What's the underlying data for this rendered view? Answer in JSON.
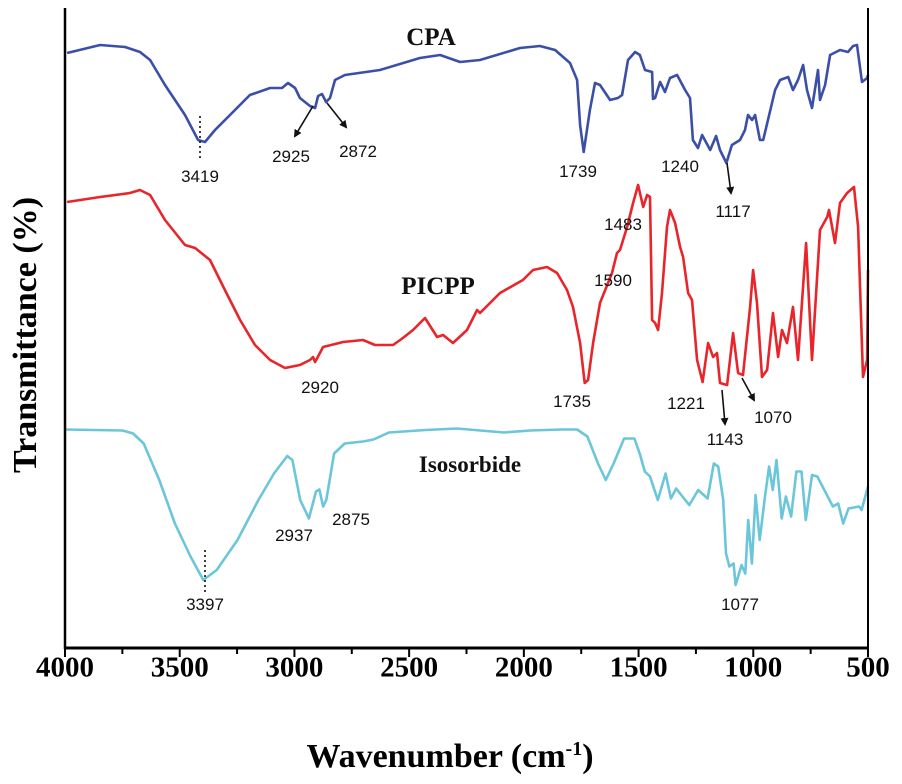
{
  "chart_data": {
    "type": "line",
    "xlabel": "Wavenumber (cm",
    "xlabel_sup": "-1",
    "xlabel_end": ")",
    "ylabel": "Transmittance (%)",
    "xlim": [
      4000,
      500
    ],
    "ylim": [
      0,
      126
    ],
    "xticks": [
      4000,
      3500,
      3000,
      2500,
      2000,
      1500,
      1000,
      500
    ],
    "xtick_labels": [
      "4000",
      "3500",
      "3000",
      "2500",
      "2000",
      "1500",
      "1000",
      "500"
    ],
    "grid": false,
    "series": [
      {
        "name": "CPA",
        "color": "#3b4fa6",
        "points": [
          [
            3991,
            119
          ],
          [
            3847,
            120.6
          ],
          [
            3738,
            120.2
          ],
          [
            3673,
            119.2
          ],
          [
            3629,
            117.6
          ],
          [
            3564,
            112.6
          ],
          [
            3477,
            106.6
          ],
          [
            3420,
            101.6
          ],
          [
            3390,
            101.2
          ],
          [
            3346,
            103.6
          ],
          [
            3281,
            106.6
          ],
          [
            3194,
            110.6
          ],
          [
            3106,
            112
          ],
          [
            3054,
            112
          ],
          [
            3028,
            113
          ],
          [
            2997,
            112
          ],
          [
            2976,
            110
          ],
          [
            2932,
            108.4
          ],
          [
            2910,
            108
          ],
          [
            2897,
            110.4
          ],
          [
            2880,
            110.8
          ],
          [
            2862,
            109.2
          ],
          [
            2845,
            110
          ],
          [
            2823,
            113.6
          ],
          [
            2780,
            114.6
          ],
          [
            2627,
            115.6
          ],
          [
            2453,
            118
          ],
          [
            2365,
            118.6
          ],
          [
            2278,
            117.2
          ],
          [
            2191,
            117.6
          ],
          [
            2017,
            120
          ],
          [
            1930,
            120.4
          ],
          [
            1864,
            119.6
          ],
          [
            1799,
            117
          ],
          [
            1768,
            113.6
          ],
          [
            1755,
            104.6
          ],
          [
            1739,
            99.2
          ],
          [
            1712,
            107.6
          ],
          [
            1690,
            113
          ],
          [
            1668,
            112.6
          ],
          [
            1624,
            109.6
          ],
          [
            1590,
            110
          ],
          [
            1572,
            110.6
          ],
          [
            1546,
            117.6
          ],
          [
            1515,
            119.2
          ],
          [
            1494,
            118.6
          ],
          [
            1472,
            115.6
          ],
          [
            1441,
            115.2
          ],
          [
            1437,
            109.8
          ],
          [
            1428,
            110
          ],
          [
            1406,
            113.2
          ],
          [
            1385,
            111.2
          ],
          [
            1363,
            114
          ],
          [
            1332,
            114.6
          ],
          [
            1297,
            111.6
          ],
          [
            1276,
            110
          ],
          [
            1263,
            101.6
          ],
          [
            1241,
            100
          ],
          [
            1223,
            102.6
          ],
          [
            1188,
            99.6
          ],
          [
            1162,
            102.4
          ],
          [
            1145,
            99.6
          ],
          [
            1117,
            97
          ],
          [
            1093,
            100.6
          ],
          [
            1058,
            101.6
          ],
          [
            1036,
            103.6
          ],
          [
            1023,
            106.6
          ],
          [
            1005,
            105.6
          ],
          [
            992,
            106.6
          ],
          [
            971,
            101.6
          ],
          [
            957,
            101.6
          ],
          [
            905,
            111.6
          ],
          [
            883,
            113.6
          ],
          [
            848,
            114.2
          ],
          [
            827,
            111.6
          ],
          [
            805,
            113.6
          ],
          [
            783,
            116.6
          ],
          [
            766,
            111.6
          ],
          [
            744,
            108
          ],
          [
            718,
            115.6
          ],
          [
            709,
            109.6
          ],
          [
            687,
            112.6
          ],
          [
            665,
            118.6
          ],
          [
            622,
            119.6
          ],
          [
            587,
            119.2
          ],
          [
            565,
            120.4
          ],
          [
            548,
            120.6
          ],
          [
            526,
            113.2
          ],
          [
            504,
            114
          ],
          [
            500,
            114.6
          ]
        ]
      },
      {
        "name": "PICPP",
        "color": "#e8252a",
        "points": [
          [
            3991,
            89.2
          ],
          [
            3847,
            90.2
          ],
          [
            3717,
            91
          ],
          [
            3673,
            91.6
          ],
          [
            3629,
            90.6
          ],
          [
            3564,
            85.6
          ],
          [
            3477,
            80.6
          ],
          [
            3433,
            80
          ],
          [
            3368,
            77.6
          ],
          [
            3303,
            71.6
          ],
          [
            3237,
            65.6
          ],
          [
            3172,
            60.6
          ],
          [
            3106,
            57.6
          ],
          [
            3041,
            56
          ],
          [
            2976,
            56.6
          ],
          [
            2932,
            57.6
          ],
          [
            2919,
            58.2
          ],
          [
            2910,
            57.2
          ],
          [
            2875,
            60.2
          ],
          [
            2788,
            61.2
          ],
          [
            2701,
            61.6
          ],
          [
            2649,
            60.6
          ],
          [
            2570,
            60.6
          ],
          [
            2527,
            62
          ],
          [
            2483,
            63.6
          ],
          [
            2431,
            66
          ],
          [
            2378,
            62.2
          ],
          [
            2352,
            62.6
          ],
          [
            2309,
            61
          ],
          [
            2248,
            63.6
          ],
          [
            2204,
            67.6
          ],
          [
            2191,
            67
          ],
          [
            2104,
            71
          ],
          [
            2004,
            73.6
          ],
          [
            1960,
            75.6
          ],
          [
            1899,
            76.2
          ],
          [
            1855,
            75
          ],
          [
            1812,
            71.6
          ],
          [
            1786,
            68.2
          ],
          [
            1755,
            61
          ],
          [
            1735,
            53
          ],
          [
            1720,
            53.6
          ],
          [
            1698,
            61
          ],
          [
            1668,
            69
          ],
          [
            1616,
            75
          ],
          [
            1594,
            79
          ],
          [
            1581,
            79.6
          ],
          [
            1550,
            84.2
          ],
          [
            1524,
            89
          ],
          [
            1502,
            92.6
          ],
          [
            1480,
            88.2
          ],
          [
            1463,
            90.6
          ],
          [
            1450,
            90.2
          ],
          [
            1441,
            65.6
          ],
          [
            1428,
            65
          ],
          [
            1415,
            63.6
          ],
          [
            1398,
            71
          ],
          [
            1376,
            84.2
          ],
          [
            1363,
            87.6
          ],
          [
            1341,
            85
          ],
          [
            1319,
            80.2
          ],
          [
            1306,
            78.2
          ],
          [
            1284,
            71
          ],
          [
            1267,
            69.6
          ],
          [
            1245,
            57.6
          ],
          [
            1221,
            53.2
          ],
          [
            1197,
            61
          ],
          [
            1175,
            58.2
          ],
          [
            1158,
            59
          ],
          [
            1145,
            53
          ],
          [
            1114,
            52.6
          ],
          [
            1088,
            63
          ],
          [
            1066,
            55
          ],
          [
            1045,
            54.6
          ],
          [
            1014,
            68.2
          ],
          [
            1001,
            75.6
          ],
          [
            984,
            69
          ],
          [
            962,
            54.2
          ],
          [
            940,
            55.6
          ],
          [
            914,
            67
          ],
          [
            892,
            58.2
          ],
          [
            875,
            63.6
          ],
          [
            853,
            61
          ],
          [
            827,
            68.2
          ],
          [
            805,
            57.6
          ],
          [
            770,
            81
          ],
          [
            744,
            57.6
          ],
          [
            709,
            83.6
          ],
          [
            678,
            86.2
          ],
          [
            670,
            87.6
          ],
          [
            644,
            81
          ],
          [
            622,
            89
          ],
          [
            591,
            91
          ],
          [
            561,
            92.2
          ],
          [
            543,
            84.2
          ],
          [
            522,
            54.2
          ],
          [
            504,
            57.6
          ],
          [
            500,
            75.6
          ]
        ]
      },
      {
        "name": "Isosorbide",
        "color": "#6cc6d9",
        "points": [
          [
            4000,
            43.7
          ],
          [
            3749,
            43.5
          ],
          [
            3703,
            42.9
          ],
          [
            3657,
            40.9
          ],
          [
            3589,
            33.6
          ],
          [
            3521,
            24.9
          ],
          [
            3453,
            18.3
          ],
          [
            3397,
            13.6
          ],
          [
            3339,
            15.6
          ],
          [
            3248,
            21.6
          ],
          [
            3157,
            29.6
          ],
          [
            3089,
            34.9
          ],
          [
            3031,
            38.4
          ],
          [
            3009,
            37.6
          ],
          [
            2975,
            29.6
          ],
          [
            2937,
            25.9
          ],
          [
            2906,
            31.3
          ],
          [
            2891,
            31.7
          ],
          [
            2875,
            28.3
          ],
          [
            2861,
            29.6
          ],
          [
            2827,
            38.9
          ],
          [
            2781,
            40.9
          ],
          [
            2701,
            41.3
          ],
          [
            2656,
            41.7
          ],
          [
            2588,
            43.1
          ],
          [
            2429,
            43.6
          ],
          [
            2292,
            43.9
          ],
          [
            2087,
            43.1
          ],
          [
            1973,
            43.5
          ],
          [
            1837,
            43.7
          ],
          [
            1768,
            43.7
          ],
          [
            1723,
            42.3
          ],
          [
            1677,
            36.9
          ],
          [
            1643,
            33.6
          ],
          [
            1609,
            36.9
          ],
          [
            1563,
            41.9
          ],
          [
            1518,
            41.9
          ],
          [
            1495,
            38.9
          ],
          [
            1473,
            35.3
          ],
          [
            1450,
            34.3
          ],
          [
            1416,
            29.6
          ],
          [
            1382,
            34.9
          ],
          [
            1359,
            29.9
          ],
          [
            1336,
            31.9
          ],
          [
            1302,
            29.9
          ],
          [
            1279,
            28.6
          ],
          [
            1240,
            31.6
          ],
          [
            1199,
            29.9
          ],
          [
            1172,
            36.9
          ],
          [
            1153,
            36.3
          ],
          [
            1131,
            29.6
          ],
          [
            1119,
            18.9
          ],
          [
            1104,
            16.3
          ],
          [
            1086,
            16.9
          ],
          [
            1077,
            12.6
          ],
          [
            1051,
            16.6
          ],
          [
            1035,
            14.9
          ],
          [
            1022,
            25.6
          ],
          [
            1006,
            16.9
          ],
          [
            990,
            30.6
          ],
          [
            972,
            21.6
          ],
          [
            949,
            30.3
          ],
          [
            931,
            36.3
          ],
          [
            915,
            31.6
          ],
          [
            899,
            37.6
          ],
          [
            876,
            25.9
          ],
          [
            858,
            30.3
          ],
          [
            835,
            26.3
          ],
          [
            812,
            35.3
          ],
          [
            790,
            35.3
          ],
          [
            771,
            25.6
          ],
          [
            744,
            34.6
          ],
          [
            721,
            34.3
          ],
          [
            653,
            28.3
          ],
          [
            630,
            28.9
          ],
          [
            608,
            24.9
          ],
          [
            585,
            27.9
          ],
          [
            539,
            28.3
          ],
          [
            528,
            27.6
          ],
          [
            500,
            32.3
          ]
        ]
      }
    ],
    "series_labels": [
      "CPA",
      "PICPP",
      "Isosorbide"
    ],
    "annotations": [
      "3419",
      "2925",
      "2872",
      "1739",
      "1240",
      "1117",
      "1483",
      "1590",
      "2920",
      "1735",
      "1221",
      "1070",
      "1143",
      "2937",
      "2875",
      "3397",
      "1077"
    ]
  }
}
